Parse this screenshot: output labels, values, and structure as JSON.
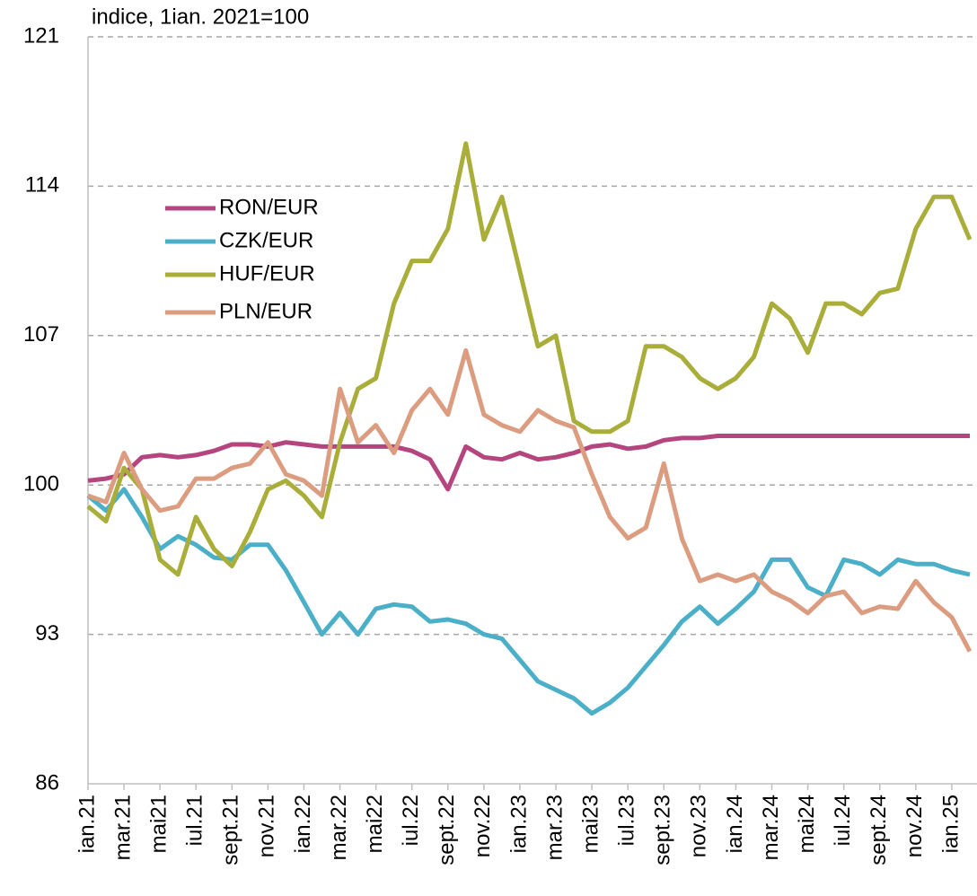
{
  "chart_data": {
    "type": "line",
    "annotation": "indice, 1ian. 2021=100",
    "categories": [
      "ian.21",
      null,
      "mar.21",
      null,
      "mai21",
      null,
      "iul.21",
      null,
      "sept.21",
      null,
      "nov.21",
      null,
      "ian.22",
      null,
      "mar.22",
      null,
      "mai22",
      null,
      "iul.22",
      null,
      "sept.22",
      null,
      "nov.22",
      null,
      "ian.23",
      null,
      "mar.23",
      null,
      "mai23",
      null,
      "iul.23",
      null,
      "sept.23",
      null,
      "nov.23",
      null,
      "ian.24",
      null,
      "mar.24",
      null,
      "mai24",
      null,
      "iul.24",
      null,
      "sept.24",
      null,
      "nov.24",
      null,
      "ian.25",
      null
    ],
    "series": [
      {
        "name": "RON/EUR",
        "color": "#b5457f",
        "values": [
          100.2,
          100.3,
          100.5,
          101.3,
          101.4,
          101.3,
          101.4,
          101.6,
          101.9,
          101.9,
          101.8,
          102.0,
          101.9,
          101.8,
          101.8,
          101.8,
          101.8,
          101.8,
          101.6,
          101.2,
          99.8,
          101.8,
          101.3,
          101.2,
          101.5,
          101.2,
          101.3,
          101.5,
          101.8,
          101.9,
          101.7,
          101.8,
          102.1,
          102.2,
          102.2,
          102.3,
          102.3,
          102.3,
          102.3,
          102.3,
          102.3,
          102.3,
          102.3,
          102.3,
          102.3,
          102.3,
          102.3,
          102.3,
          102.3,
          102.3
        ]
      },
      {
        "name": "CZK/EUR",
        "color": "#4bafc8",
        "values": [
          99.5,
          98.8,
          99.8,
          98.5,
          97.0,
          97.6,
          97.2,
          96.6,
          96.5,
          97.2,
          97.2,
          96.0,
          94.5,
          93.0,
          94.0,
          93.0,
          94.2,
          94.4,
          94.3,
          93.6,
          93.7,
          93.5,
          93.0,
          92.8,
          91.8,
          90.8,
          90.4,
          90.0,
          89.3,
          89.8,
          90.5,
          91.5,
          92.5,
          93.6,
          94.3,
          93.5,
          94.2,
          95.0,
          96.5,
          96.5,
          95.2,
          94.8,
          96.5,
          96.3,
          95.8,
          96.5,
          96.3,
          96.3,
          96.0,
          95.8
        ]
      },
      {
        "name": "HUF/EUR",
        "color": "#a9ae3a",
        "values": [
          99.0,
          98.3,
          100.8,
          99.8,
          96.5,
          95.8,
          98.5,
          97.0,
          96.2,
          97.8,
          99.8,
          100.2,
          99.5,
          98.5,
          102.0,
          104.5,
          105.0,
          108.5,
          110.5,
          110.5,
          112.0,
          116.0,
          111.5,
          113.5,
          110.0,
          106.5,
          107.0,
          103.0,
          102.5,
          102.5,
          103.0,
          106.5,
          106.5,
          106.0,
          105.0,
          104.5,
          105.0,
          106.0,
          108.5,
          107.8,
          106.2,
          108.5,
          108.5,
          108.0,
          109.0,
          109.2,
          112.0,
          113.5,
          113.5,
          111.5
        ]
      },
      {
        "name": "PLN/EUR",
        "color": "#dc9c80",
        "values": [
          99.5,
          99.2,
          101.5,
          99.8,
          98.8,
          99.0,
          100.3,
          100.3,
          100.8,
          101.0,
          102.0,
          100.5,
          100.2,
          99.5,
          104.5,
          102.0,
          102.8,
          101.5,
          103.5,
          104.5,
          103.3,
          106.3,
          103.3,
          102.8,
          102.5,
          103.5,
          103.0,
          102.7,
          100.5,
          98.5,
          97.5,
          98.0,
          101.0,
          97.5,
          95.5,
          95.8,
          95.5,
          95.8,
          95.0,
          94.6,
          94.0,
          94.8,
          95.0,
          94.0,
          94.3,
          94.2,
          95.5,
          94.5,
          93.8,
          92.2
        ]
      }
    ],
    "ylim": [
      86,
      121
    ],
    "yticks": [
      86,
      93,
      100,
      107,
      114,
      121
    ],
    "grid": true
  }
}
